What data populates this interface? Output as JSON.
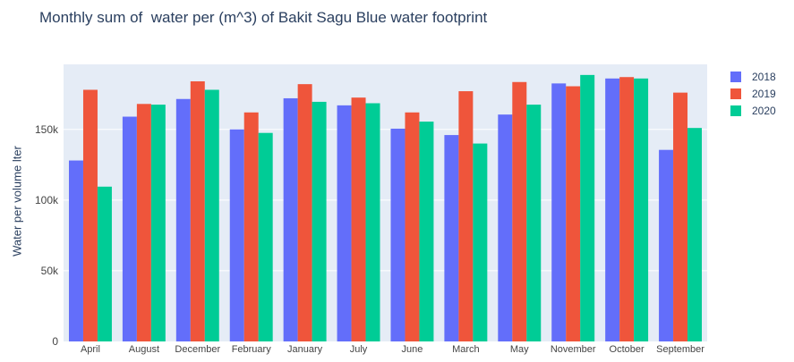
{
  "chart_data": {
    "type": "bar",
    "title": "Monthly sum of  water per (m^3) of Bakit Sagu Blue water footprint",
    "xlabel": "",
    "ylabel": "Water per volume lter",
    "ylim": [
      0,
      196000
    ],
    "yticks": [
      0,
      50000,
      100000,
      150000
    ],
    "ytick_labels": [
      "0",
      "50k",
      "100k",
      "150k"
    ],
    "legend_position": "top-right",
    "categories": [
      "April",
      "August",
      "December",
      "February",
      "January",
      "July",
      "June",
      "March",
      "May",
      "November",
      "October",
      "September"
    ],
    "series": [
      {
        "name": "2018",
        "color": "#636efa",
        "values": [
          128000,
          159000,
          171500,
          150000,
          172000,
          167000,
          150500,
          146000,
          160500,
          182500,
          186000,
          135500
        ]
      },
      {
        "name": "2019",
        "color": "#ef553b",
        "values": [
          178000,
          168000,
          184000,
          162000,
          182000,
          172500,
          162000,
          177000,
          183500,
          180500,
          187000,
          176000
        ]
      },
      {
        "name": "2020",
        "color": "#00cc96",
        "values": [
          109500,
          167500,
          178000,
          147500,
          169500,
          168500,
          155500,
          140000,
          167500,
          188500,
          186000,
          151000
        ]
      }
    ]
  }
}
